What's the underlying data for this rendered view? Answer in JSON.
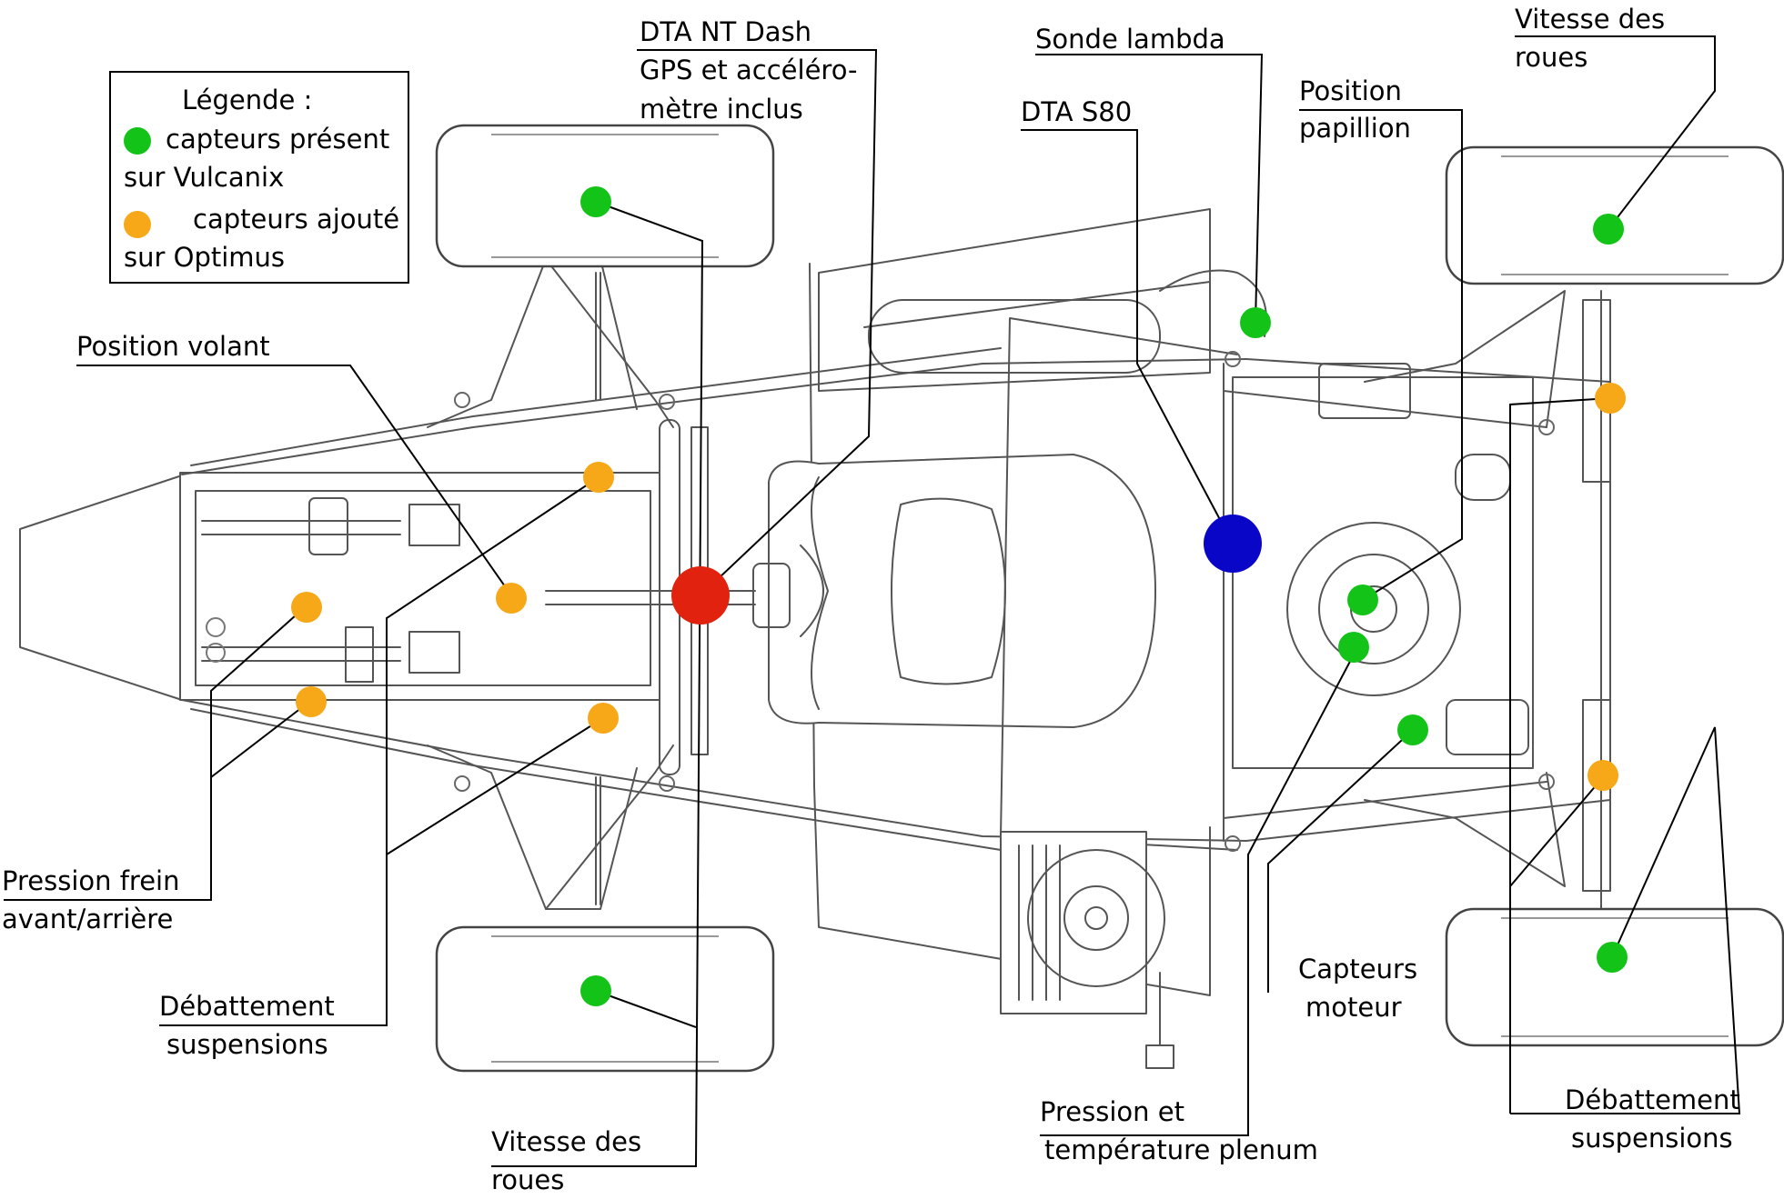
{
  "legend": {
    "title": "Légende :",
    "green_line1": "capteurs présent",
    "green_line2": "sur Vulcanix",
    "orange_line1": "capteurs ajouté",
    "orange_line2": "sur Optimus"
  },
  "labels": {
    "position_volant": "Position volant",
    "dta_nt_dash_1": "DTA NT Dash",
    "dta_nt_dash_2": "GPS et accéléro-",
    "dta_nt_dash_3": "mètre inclus",
    "sonde_lambda": "Sonde lambda",
    "dta_s80": "DTA S80",
    "position_papillon_1": "Position",
    "position_papillon_2": "papillion",
    "vitesse_roues_tr_1": "Vitesse des",
    "vitesse_roues_tr_2": "roues",
    "pression_frein_1": "Pression frein",
    "pression_frein_2": "avant/arrière",
    "debattement_left_1": "Débattement",
    "debattement_left_2": "suspensions",
    "vitesse_roues_bl_1": "Vitesse des",
    "vitesse_roues_bl_2": "roues",
    "pression_plenum_1": "Pression et",
    "pression_plenum_2": "température plenum",
    "capteurs_moteur_1": "Capteurs",
    "capteurs_moteur_2": "moteur",
    "debattement_right_1": "Débattement",
    "debattement_right_2": "suspensions"
  },
  "colors": {
    "green": "#13c318",
    "orange": "#f7a819",
    "red": "#e0220e",
    "blue": "#0a06c8",
    "line": "#000000",
    "drawing": "#555555"
  }
}
